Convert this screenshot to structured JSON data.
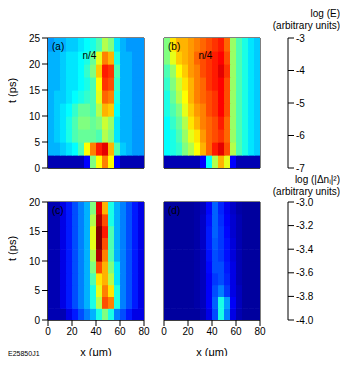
{
  "footer": "E25850J1",
  "chart_data": [
    {
      "type": "heatmap",
      "title": "(a)",
      "ylabel": "t (ps)",
      "tick_labels": "y",
      "xlim": [
        0,
        80
      ],
      "xticks": [
        0,
        20,
        40,
        60,
        80
      ],
      "ylim": [
        0,
        25
      ],
      "yticks": [
        0,
        5,
        10,
        15,
        20,
        25
      ],
      "x": [
        2.5,
        7.5,
        12.5,
        17.5,
        22.5,
        27.5,
        32.5,
        37.5,
        42.5,
        47.5,
        52.5,
        57.5,
        62.5,
        67.5,
        72.5,
        77.5
      ],
      "y": [
        1.25,
        3.75,
        6.25,
        8.75,
        11.25,
        13.75,
        16.25,
        18.75,
        21.25,
        23.75
      ],
      "z": [
        [
          -6.8,
          -6.8,
          -6.8,
          -6.8,
          -6.8,
          -6.8,
          -6.5,
          -5.0,
          -4.5,
          -4.0,
          -4.5,
          -6.5,
          -6.8,
          -6.8,
          -6.8,
          -6.8
        ],
        [
          -5.8,
          -5.8,
          -5.7,
          -5.6,
          -5.5,
          -5.2,
          -4.5,
          -4.0,
          -3.6,
          -3.4,
          -4.2,
          -5.2,
          -5.7,
          -5.8,
          -5.9,
          -5.9
        ],
        [
          -5.8,
          -5.7,
          -5.6,
          -5.4,
          -5.2,
          -5.1,
          -5.1,
          -5.1,
          -5.2,
          -4.8,
          -5.0,
          -5.6,
          -5.8,
          -5.8,
          -5.9,
          -5.9
        ],
        [
          -5.8,
          -5.7,
          -5.6,
          -5.4,
          -5.2,
          -5.0,
          -5.0,
          -5.1,
          -5.0,
          -4.7,
          -4.9,
          -5.6,
          -5.8,
          -5.8,
          -5.9,
          -5.9
        ],
        [
          -5.8,
          -5.7,
          -5.6,
          -5.5,
          -5.3,
          -5.1,
          -5.1,
          -5.2,
          -4.8,
          -4.2,
          -4.3,
          -5.5,
          -5.8,
          -5.8,
          -5.9,
          -5.9
        ],
        [
          -5.8,
          -5.7,
          -5.7,
          -5.6,
          -5.5,
          -5.4,
          -5.3,
          -5.2,
          -4.6,
          -3.9,
          -4.0,
          -5.4,
          -5.8,
          -5.8,
          -5.9,
          -5.9
        ],
        [
          -5.8,
          -5.8,
          -5.7,
          -5.6,
          -5.6,
          -5.5,
          -5.4,
          -5.2,
          -4.5,
          -3.7,
          -3.8,
          -5.3,
          -5.8,
          -5.8,
          -5.9,
          -5.9
        ],
        [
          -5.8,
          -5.8,
          -5.7,
          -5.6,
          -5.6,
          -5.5,
          -5.3,
          -5.0,
          -4.3,
          -3.6,
          -3.7,
          -5.2,
          -5.8,
          -5.8,
          -5.9,
          -5.9
        ],
        [
          -5.8,
          -5.8,
          -5.7,
          -5.6,
          -5.6,
          -5.5,
          -5.4,
          -5.1,
          -4.6,
          -4.0,
          -4.2,
          -5.4,
          -5.8,
          -5.8,
          -5.9,
          -5.9
        ],
        [
          -5.9,
          -5.8,
          -5.8,
          -5.7,
          -5.7,
          -5.6,
          -5.5,
          -5.4,
          -5.2,
          -4.8,
          -5.0,
          -5.6,
          -5.8,
          -5.9,
          -5.9,
          -5.9
        ]
      ],
      "annotations": [
        {
          "x": 52,
          "label": "n/4",
          "line_style": "dashed"
        }
      ]
    },
    {
      "type": "heatmap",
      "title": "(b)",
      "tick_labels": false,
      "xlim": [
        0,
        80
      ],
      "xticks": [
        0,
        20,
        40,
        60,
        80
      ],
      "ylim": [
        0,
        25
      ],
      "yticks": [
        0,
        5,
        10,
        15,
        20,
        25
      ],
      "x": [
        2.5,
        7.5,
        12.5,
        17.5,
        22.5,
        27.5,
        32.5,
        37.5,
        42.5,
        47.5,
        52.5,
        57.5,
        62.5,
        67.5,
        72.5,
        77.5
      ],
      "y": [
        1.25,
        3.75,
        6.25,
        8.75,
        11.25,
        13.75,
        16.25,
        18.75,
        21.25,
        23.75
      ],
      "z": [
        [
          -6.8,
          -6.8,
          -6.8,
          -6.8,
          -6.8,
          -6.8,
          -6.5,
          -5.5,
          -4.8,
          -4.2,
          -4.6,
          -6.5,
          -6.8,
          -6.8,
          -6.8,
          -6.8
        ],
        [
          -5.5,
          -5.4,
          -5.3,
          -5.0,
          -4.8,
          -4.5,
          -4.2,
          -3.9,
          -3.6,
          -3.4,
          -3.8,
          -4.8,
          -5.2,
          -5.4,
          -5.6,
          -5.7
        ],
        [
          -5.5,
          -5.4,
          -5.2,
          -4.9,
          -4.6,
          -4.4,
          -4.1,
          -3.9,
          -3.8,
          -3.7,
          -3.9,
          -4.9,
          -5.2,
          -5.4,
          -5.6,
          -5.7
        ],
        [
          -5.5,
          -5.3,
          -5.1,
          -4.8,
          -4.4,
          -4.2,
          -4.0,
          -3.9,
          -3.8,
          -3.6,
          -3.9,
          -4.9,
          -5.2,
          -5.4,
          -5.6,
          -5.7
        ],
        [
          -5.4,
          -5.2,
          -5.0,
          -4.6,
          -4.3,
          -4.1,
          -4.0,
          -3.8,
          -3.7,
          -3.5,
          -3.8,
          -4.9,
          -5.2,
          -5.4,
          -5.6,
          -5.7
        ],
        [
          -5.4,
          -5.1,
          -4.8,
          -4.5,
          -4.2,
          -4.0,
          -3.9,
          -3.8,
          -3.7,
          -3.5,
          -3.8,
          -4.9,
          -5.2,
          -5.4,
          -5.6,
          -5.7
        ],
        [
          -5.3,
          -5.0,
          -4.7,
          -4.4,
          -4.2,
          -4.0,
          -3.9,
          -3.7,
          -3.6,
          -3.5,
          -3.8,
          -4.9,
          -5.2,
          -5.4,
          -5.6,
          -5.7
        ],
        [
          -5.2,
          -4.9,
          -4.5,
          -4.3,
          -4.1,
          -4.0,
          -3.8,
          -3.7,
          -3.6,
          -3.4,
          -3.7,
          -4.9,
          -5.2,
          -5.4,
          -5.6,
          -5.7
        ],
        [
          -5.0,
          -4.6,
          -4.3,
          -4.2,
          -4.1,
          -3.9,
          -3.8,
          -3.7,
          -3.6,
          -3.5,
          -3.8,
          -4.9,
          -5.2,
          -5.4,
          -5.6,
          -5.7
        ],
        [
          -5.0,
          -4.4,
          -4.2,
          -4.2,
          -4.1,
          -4.0,
          -3.9,
          -3.8,
          -3.7,
          -3.6,
          -3.9,
          -4.9,
          -5.2,
          -5.4,
          -5.6,
          -5.7
        ]
      ],
      "annotations": [
        {
          "x": 52,
          "label": "n/4",
          "line_style": "dashed"
        }
      ],
      "colorbar": {
        "label": "log (E)",
        "units": "(arbitrary units)",
        "range": [
          -7,
          -3
        ],
        "ticks": [
          -3,
          -4,
          -5,
          -6,
          -7
        ]
      }
    },
    {
      "type": "heatmap",
      "title": "(c)",
      "xlabel": "x (μm)",
      "ylabel": "t (ps)",
      "xlim": [
        0,
        80
      ],
      "xticks": [
        0,
        20,
        40,
        60,
        80
      ],
      "ylim": [
        0,
        20
      ],
      "yticks": [
        0,
        5,
        10,
        15,
        20
      ],
      "x": [
        2.5,
        7.5,
        12.5,
        17.5,
        22.5,
        27.5,
        32.5,
        37.5,
        42.5,
        47.5,
        52.5,
        57.5,
        62.5,
        67.5,
        72.5,
        77.5
      ],
      "y": [
        1,
        3,
        5,
        7,
        9,
        11,
        13,
        15,
        17,
        19
      ],
      "z": [
        [
          -3.95,
          -3.95,
          -3.95,
          -3.9,
          -3.85,
          -3.8,
          -3.75,
          -3.7,
          -3.6,
          -3.5,
          -3.6,
          -3.75,
          -3.8,
          -3.85,
          -3.9,
          -3.9
        ],
        [
          -3.95,
          -3.95,
          -3.9,
          -3.85,
          -3.8,
          -3.75,
          -3.7,
          -3.6,
          -3.45,
          -3.2,
          -3.25,
          -3.6,
          -3.75,
          -3.8,
          -3.85,
          -3.9
        ],
        [
          -3.95,
          -3.95,
          -3.9,
          -3.85,
          -3.8,
          -3.75,
          -3.7,
          -3.6,
          -3.4,
          -3.25,
          -3.35,
          -3.6,
          -3.75,
          -3.8,
          -3.85,
          -3.9
        ],
        [
          -3.95,
          -3.95,
          -3.9,
          -3.85,
          -3.8,
          -3.75,
          -3.7,
          -3.55,
          -3.35,
          -3.3,
          -3.45,
          -3.65,
          -3.75,
          -3.8,
          -3.85,
          -3.9
        ],
        [
          -3.95,
          -3.95,
          -3.9,
          -3.85,
          -3.8,
          -3.75,
          -3.7,
          -3.5,
          -3.2,
          -3.3,
          -3.5,
          -3.65,
          -3.75,
          -3.8,
          -3.85,
          -3.9
        ],
        [
          -3.95,
          -3.95,
          -3.9,
          -3.85,
          -3.8,
          -3.75,
          -3.7,
          -3.45,
          -3.05,
          -3.25,
          -3.55,
          -3.7,
          -3.75,
          -3.8,
          -3.85,
          -3.9
        ],
        [
          -3.95,
          -3.95,
          -3.9,
          -3.85,
          -3.8,
          -3.75,
          -3.7,
          -3.4,
          -3.0,
          -3.2,
          -3.55,
          -3.7,
          -3.75,
          -3.8,
          -3.85,
          -3.9
        ],
        [
          -3.95,
          -3.95,
          -3.9,
          -3.85,
          -3.8,
          -3.75,
          -3.7,
          -3.4,
          -3.0,
          -3.15,
          -3.55,
          -3.7,
          -3.75,
          -3.8,
          -3.85,
          -3.9
        ],
        [
          -3.95,
          -3.95,
          -3.9,
          -3.85,
          -3.8,
          -3.75,
          -3.7,
          -3.45,
          -3.05,
          -3.2,
          -3.6,
          -3.7,
          -3.75,
          -3.8,
          -3.85,
          -3.9
        ],
        [
          -3.95,
          -3.95,
          -3.9,
          -3.85,
          -3.8,
          -3.75,
          -3.7,
          -3.5,
          -3.1,
          -3.3,
          -3.6,
          -3.7,
          -3.75,
          -3.8,
          -3.85,
          -3.9
        ]
      ]
    },
    {
      "type": "heatmap",
      "title": "(d)",
      "xlabel": "x (μm)",
      "tick_labels": "x",
      "xlim": [
        0,
        80
      ],
      "xticks": [
        0,
        20,
        40,
        60,
        80
      ],
      "ylim": [
        0,
        20
      ],
      "yticks": [
        0,
        5,
        10,
        15,
        20
      ],
      "x": [
        2.5,
        7.5,
        12.5,
        17.5,
        22.5,
        27.5,
        32.5,
        37.5,
        42.5,
        47.5,
        52.5,
        57.5,
        62.5,
        67.5,
        72.5,
        77.5
      ],
      "y": [
        1,
        3,
        5,
        7,
        9,
        11,
        13,
        15,
        17,
        19
      ],
      "z": [
        [
          -3.97,
          -3.97,
          -3.97,
          -3.97,
          -3.97,
          -3.97,
          -3.95,
          -3.9,
          -3.8,
          -3.6,
          -3.75,
          -3.9,
          -3.95,
          -3.97,
          -3.97,
          -3.97
        ],
        [
          -3.97,
          -3.97,
          -3.97,
          -3.97,
          -3.97,
          -3.96,
          -3.94,
          -3.88,
          -3.78,
          -3.6,
          -3.72,
          -3.88,
          -3.94,
          -3.97,
          -3.97,
          -3.97
        ],
        [
          -3.97,
          -3.97,
          -3.97,
          -3.97,
          -3.97,
          -3.96,
          -3.94,
          -3.88,
          -3.8,
          -3.75,
          -3.82,
          -3.9,
          -3.94,
          -3.97,
          -3.97,
          -3.97
        ],
        [
          -3.97,
          -3.97,
          -3.97,
          -3.97,
          -3.97,
          -3.96,
          -3.94,
          -3.88,
          -3.82,
          -3.8,
          -3.84,
          -3.9,
          -3.95,
          -3.97,
          -3.97,
          -3.97
        ],
        [
          -3.97,
          -3.97,
          -3.97,
          -3.97,
          -3.97,
          -3.96,
          -3.94,
          -3.87,
          -3.8,
          -3.8,
          -3.85,
          -3.9,
          -3.95,
          -3.97,
          -3.97,
          -3.97
        ],
        [
          -3.97,
          -3.97,
          -3.97,
          -3.97,
          -3.97,
          -3.96,
          -3.94,
          -3.86,
          -3.8,
          -3.82,
          -3.86,
          -3.91,
          -3.95,
          -3.97,
          -3.97,
          -3.97
        ],
        [
          -3.97,
          -3.97,
          -3.97,
          -3.97,
          -3.97,
          -3.96,
          -3.93,
          -3.85,
          -3.79,
          -3.82,
          -3.86,
          -3.91,
          -3.95,
          -3.97,
          -3.97,
          -3.97
        ],
        [
          -3.97,
          -3.97,
          -3.97,
          -3.97,
          -3.97,
          -3.96,
          -3.93,
          -3.85,
          -3.78,
          -3.82,
          -3.87,
          -3.92,
          -3.95,
          -3.97,
          -3.97,
          -3.97
        ],
        [
          -3.97,
          -3.97,
          -3.97,
          -3.97,
          -3.97,
          -3.96,
          -3.93,
          -3.86,
          -3.78,
          -3.83,
          -3.88,
          -3.92,
          -3.95,
          -3.97,
          -3.97,
          -3.97
        ],
        [
          -3.97,
          -3.97,
          -3.97,
          -3.97,
          -3.97,
          -3.96,
          -3.94,
          -3.87,
          -3.78,
          -3.84,
          -3.89,
          -3.93,
          -3.96,
          -3.97,
          -3.97,
          -3.97
        ]
      ],
      "colorbar": {
        "label": "log (|Δnᵢ|²)",
        "units": "(arbitrary units)",
        "range": [
          -4,
          -3
        ],
        "ticks": [
          {
            "value": -3,
            "label": "-3.0"
          },
          -3.2,
          -3.4,
          -3.6,
          -3.8,
          {
            "value": -4,
            "label": "-4.0"
          }
        ]
      }
    }
  ]
}
